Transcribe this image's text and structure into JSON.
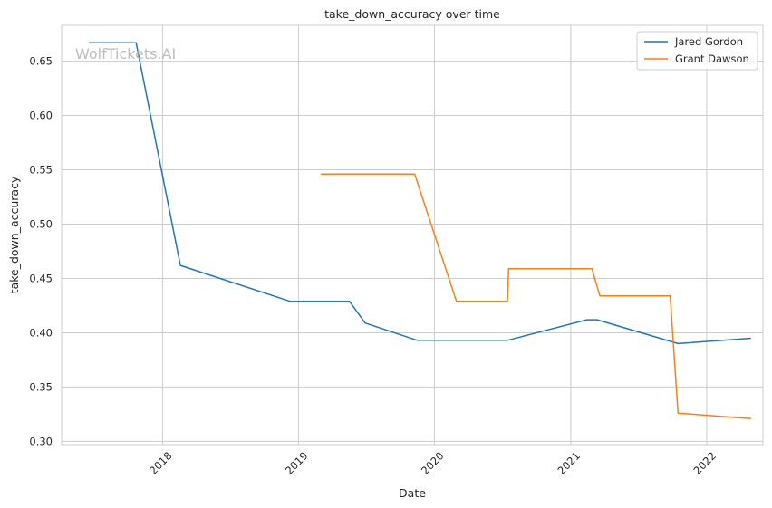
{
  "chart_data": {
    "type": "line",
    "title": "take_down_accuracy over time",
    "xlabel": "Date",
    "ylabel": "take_down_accuracy",
    "watermark": "WolfTickets.AI",
    "grid": true,
    "legend_position": "top-right",
    "xlim": [
      "2017-04-05",
      "2022-06-01"
    ],
    "ylim": [
      0.297,
      0.683
    ],
    "x_ticks": [
      "2018",
      "2019",
      "2020",
      "2021",
      "2022"
    ],
    "y_ticks": [
      "0.30",
      "0.35",
      "0.40",
      "0.45",
      "0.50",
      "0.55",
      "0.60",
      "0.65"
    ],
    "series": [
      {
        "name": "Jared Gordon",
        "color": "#1f77b4",
        "points": [
          [
            "2017-06-17",
            0.667
          ],
          [
            "2017-10-22",
            0.667
          ],
          [
            "2018-02-18",
            0.462
          ],
          [
            "2018-12-09",
            0.429
          ],
          [
            "2019-05-18",
            0.429
          ],
          [
            "2019-06-29",
            0.409
          ],
          [
            "2019-11-16",
            0.393
          ],
          [
            "2020-07-15",
            0.393
          ],
          [
            "2021-02-13",
            0.412
          ],
          [
            "2021-03-13",
            0.412
          ],
          [
            "2021-10-16",
            0.39
          ],
          [
            "2022-04-30",
            0.395
          ]
        ]
      },
      {
        "name": "Grant Dawson",
        "color": "#ff7f0e",
        "points": [
          [
            "2019-03-02",
            0.546
          ],
          [
            "2019-11-09",
            0.546
          ],
          [
            "2020-02-29",
            0.429
          ],
          [
            "2020-07-15",
            0.429
          ],
          [
            "2020-07-18",
            0.459
          ],
          [
            "2021-02-27",
            0.459
          ],
          [
            "2021-03-20",
            0.434
          ],
          [
            "2021-09-25",
            0.434
          ],
          [
            "2021-10-16",
            0.326
          ],
          [
            "2022-04-30",
            0.321
          ]
        ]
      }
    ]
  }
}
